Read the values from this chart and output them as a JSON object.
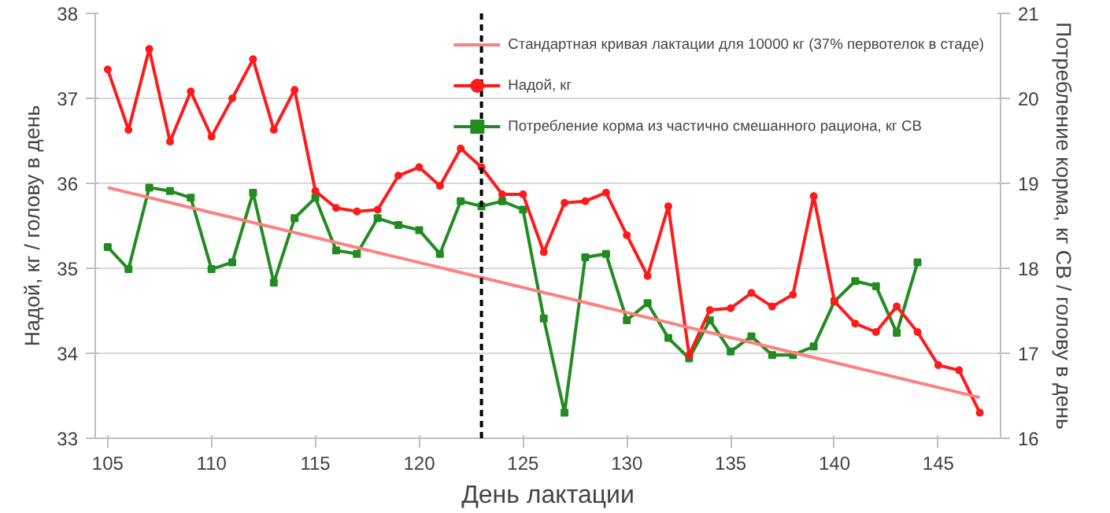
{
  "chart_data": {
    "type": "line",
    "xlabel": "День лактации",
    "ylabel": "Надой, кг / голову в день",
    "y2label": "Потребление корма, кг СВ / голову в день",
    "xlim": [
      104.4,
      148
    ],
    "xticks": [
      105,
      110,
      115,
      120,
      125,
      130,
      135,
      140,
      145
    ],
    "ylim": [
      33,
      38
    ],
    "yticks": [
      33,
      34,
      35,
      36,
      37,
      38
    ],
    "y2lim": [
      16,
      21
    ],
    "y2ticks": [
      16,
      17,
      18,
      19,
      20,
      21
    ],
    "grid": "y",
    "legend": "top right",
    "series": [
      {
        "name": "Стандартная кривая лактации для 10000 кг (37% первотелок в стаде)",
        "color": "#ff8080",
        "x": [
          105,
          147
        ],
        "values": [
          35.95,
          33.48
        ],
        "marker": "none"
      },
      {
        "name": "Надой, кг",
        "color": "#ff1a1a",
        "marker": "circle",
        "x": [
          105,
          106,
          107,
          108,
          109,
          110,
          111,
          112,
          113,
          114,
          115,
          116,
          117,
          118,
          119,
          120,
          121,
          122,
          123,
          124,
          125,
          126,
          127,
          128,
          129,
          130,
          131,
          132,
          133,
          134,
          135,
          136,
          137,
          138,
          139,
          140,
          141,
          142,
          143,
          144,
          145,
          146,
          147
        ],
        "values": [
          37.34,
          36.63,
          37.58,
          36.49,
          37.08,
          36.55,
          37.0,
          37.46,
          36.63,
          37.1,
          35.91,
          35.71,
          35.67,
          35.69,
          36.09,
          36.19,
          35.97,
          36.41,
          36.19,
          35.87,
          35.87,
          35.19,
          35.77,
          35.79,
          35.89,
          35.39,
          34.91,
          35.73,
          33.98,
          34.51,
          34.53,
          34.71,
          34.55,
          34.69,
          35.85,
          34.61,
          34.35,
          34.25,
          34.55,
          34.25,
          33.86,
          33.8,
          33.3
        ]
      },
      {
        "name": "Потребление корма из частично смешанного рациона, кг СВ",
        "color": "#228b22",
        "marker": "square",
        "axis": "y2",
        "x": [
          105,
          106,
          107,
          108,
          109,
          110,
          111,
          112,
          113,
          114,
          115,
          116,
          117,
          118,
          119,
          120,
          121,
          122,
          123,
          124,
          125,
          126,
          127,
          128,
          129,
          130,
          131,
          132,
          133,
          134,
          135,
          136,
          137,
          138,
          139,
          140,
          141,
          142,
          143,
          144
        ],
        "values": [
          18.25,
          17.99,
          18.95,
          18.91,
          18.83,
          17.99,
          18.07,
          18.89,
          17.83,
          18.59,
          18.83,
          18.21,
          18.17,
          18.59,
          18.51,
          18.45,
          18.17,
          18.79,
          18.73,
          18.79,
          18.69,
          17.41,
          16.3,
          18.13,
          18.17,
          17.39,
          17.59,
          17.18,
          16.94,
          17.39,
          17.02,
          17.2,
          16.98,
          16.98,
          17.08,
          17.61,
          17.85,
          17.79,
          17.24,
          18.07
        ]
      }
    ],
    "ref_lines": [
      {
        "axis": "x",
        "value": 123,
        "color": "#000000",
        "line_style": "dashed"
      }
    ]
  }
}
